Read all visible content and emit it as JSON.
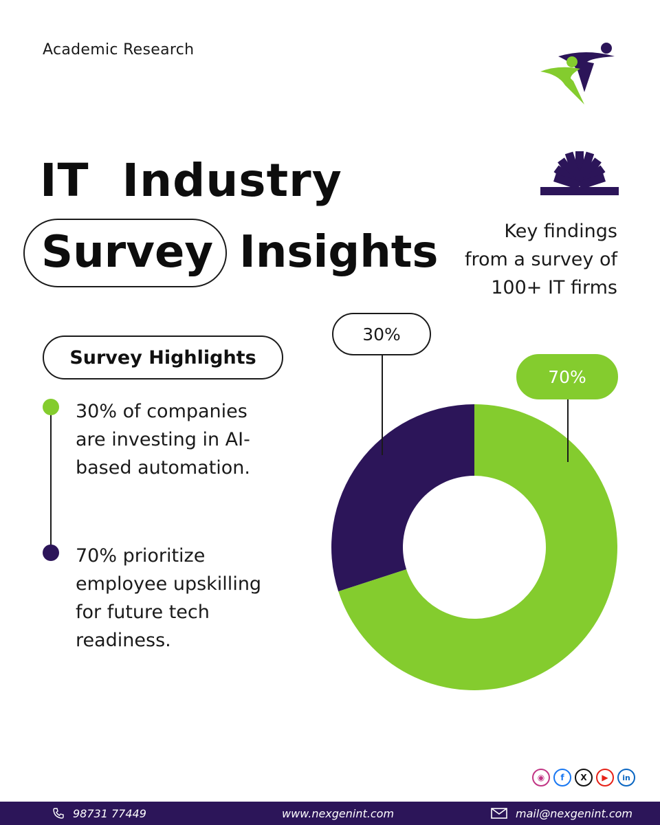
{
  "header": {
    "brand_label": "Academic Research",
    "title_line1": "IT  Industry",
    "title_word_boxed": "Survey",
    "title_word_plain": "Insights"
  },
  "subtitle_lines": [
    "Key findings",
    "from a survey of",
    "100+ IT firms"
  ],
  "highlights": {
    "heading": "Survey Highlights",
    "bullets": [
      {
        "lines": [
          "30% of companies",
          "are investing in AI-",
          "based automation."
        ],
        "color": "#84cc2e"
      },
      {
        "lines": [
          "70% prioritize",
          "employee upskilling",
          "for future tech",
          "readiness."
        ],
        "color": "#2c1559"
      }
    ]
  },
  "chart_data": {
    "type": "pie",
    "variant": "donut",
    "categories": [],
    "series": [
      {
        "label": "30%",
        "value": 30,
        "color": "#2c1559"
      },
      {
        "label": "70%",
        "value": 70,
        "color": "#84cc2e"
      }
    ]
  },
  "colors": {
    "accent_green": "#84cc2e",
    "accent_purple": "#2c1559"
  },
  "socials": [
    "instagram-icon",
    "facebook-icon",
    "x-icon",
    "youtube-icon",
    "linkedin-icon"
  ],
  "footer": {
    "phone": "98731 77449",
    "website": "www.nexgenint.com",
    "email": "mail@nexgenint.com"
  }
}
